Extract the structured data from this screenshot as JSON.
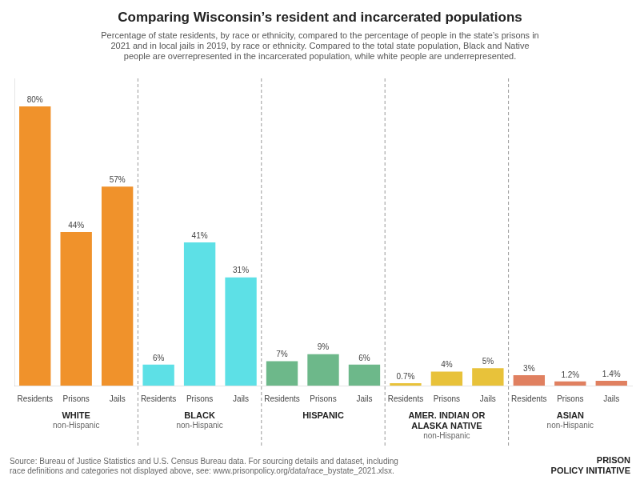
{
  "chart_data": {
    "type": "bar",
    "title": "Comparing Wisconsin’s resident and incarcerated populations",
    "subtitle": "Percentage of state residents, by race or ethnicity, compared to the percentage of people in the state’s prisons in\n2021 and in local jails in 2019, by race or ethnicity. Compared to the total state population, Black and Native\npeople are overrepresented in the incarcerated population, while white people are underrepresented.",
    "source": "Source: Bureau of Justice Statistics and U.S. Census Bureau data. For sourcing details and dataset, including\nrace definitions and categories not displayed above, see: www.prisonpolicy.org/data/race_bystate_2021.xlsx.",
    "categories": [
      "Residents",
      "Prisons",
      "Jails",
      "Residents",
      "Prisons",
      "Jails",
      "Residents",
      "Prisons",
      "Jails",
      "Residents",
      "Prisons",
      "Jails",
      "Residents",
      "Prisons",
      "Jails"
    ],
    "values": [
      80,
      44,
      57,
      6,
      41,
      31,
      7,
      9,
      6,
      0.7,
      4,
      5,
      3,
      1.2,
      1.4
    ],
    "value_labels": [
      "80%",
      "44%",
      "57%",
      "6%",
      "41%",
      "31%",
      "7%",
      "9%",
      "6%",
      "0.7%",
      "4%",
      "5%",
      "3%",
      "1.2%",
      "1.4%"
    ],
    "colors": [
      "#f0922b",
      "#f0922b",
      "#f0922b",
      "#5de0e6",
      "#5de0e6",
      "#5de0e6",
      "#6db88a",
      "#6db88a",
      "#6db88a",
      "#e8c23a",
      "#e8c23a",
      "#e8c23a",
      "#e08060",
      "#e08060",
      "#e08060"
    ],
    "group_labels": [
      {
        "name": "WHITE",
        "subname": "non-Hispanic"
      },
      {
        "name": "BLACK",
        "subname": "non-Hispanic"
      },
      {
        "name": "HISPANIC"
      },
      {
        "name": "AMER. INDIAN OR\nALASKA NATIVE",
        "subname": "non-Hispanic"
      },
      {
        "name": "ASIAN",
        "subname": "non-Hispanic"
      }
    ],
    "annotations": [
      "PRISON\nPOLICY INITIATIVE"
    ],
    "ylim": [
      0,
      88
    ],
    "grid": false,
    "data_labels": true,
    "tick_labels": "x"
  }
}
